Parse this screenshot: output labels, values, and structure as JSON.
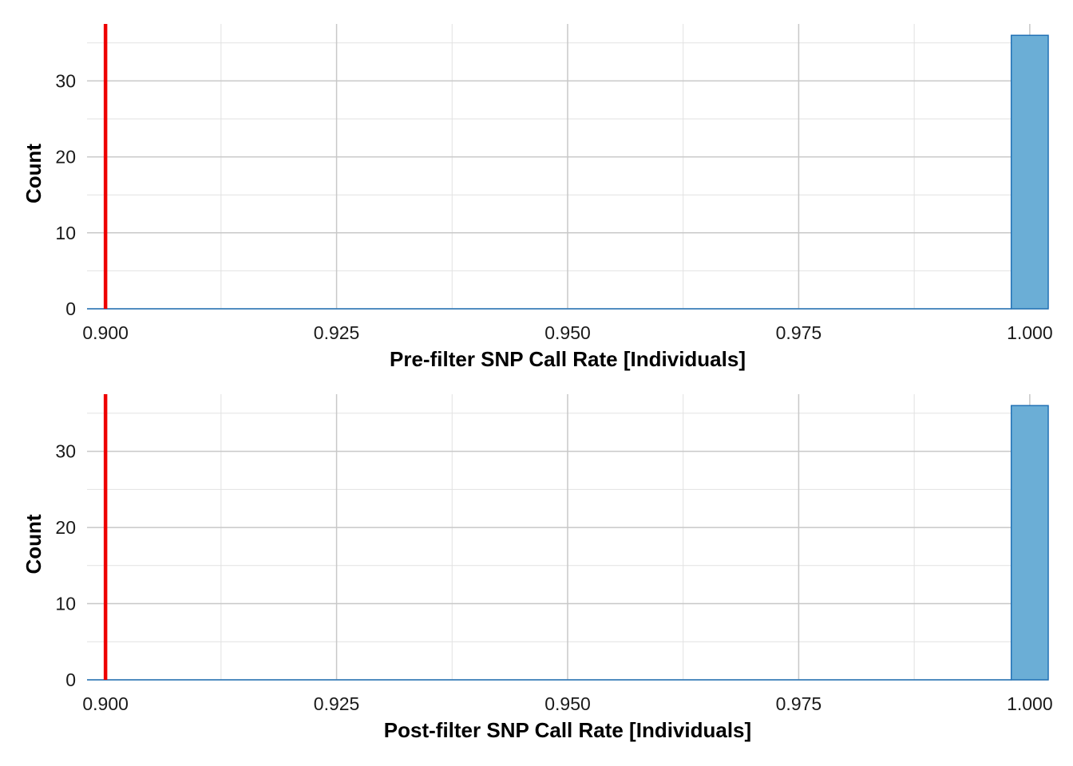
{
  "chart_data": [
    {
      "type": "bar",
      "xlabel": "Pre-filter SNP Call Rate [Individuals]",
      "ylabel": "Count",
      "xlim": [
        0.898,
        1.002
      ],
      "ylim": [
        0,
        37.5
      ],
      "x_ticks": [
        "0.900",
        "0.925",
        "0.950",
        "0.975",
        "1.000"
      ],
      "y_ticks": [
        "0",
        "10",
        "20",
        "30"
      ],
      "bins": [
        {
          "x_start": 0.898,
          "x_end": 0.998,
          "count": 0
        },
        {
          "x_start": 0.998,
          "x_end": 1.002,
          "count": 36
        }
      ],
      "threshold": 0.9,
      "grid": true
    },
    {
      "type": "bar",
      "xlabel": "Post-filter SNP Call Rate [Individuals]",
      "ylabel": "Count",
      "xlim": [
        0.898,
        1.002
      ],
      "ylim": [
        0,
        37.5
      ],
      "x_ticks": [
        "0.900",
        "0.925",
        "0.950",
        "0.975",
        "1.000"
      ],
      "y_ticks": [
        "0",
        "10",
        "20",
        "30"
      ],
      "bins": [
        {
          "x_start": 0.898,
          "x_end": 0.998,
          "count": 0
        },
        {
          "x_start": 0.998,
          "x_end": 1.002,
          "count": 36
        }
      ],
      "threshold": 0.9,
      "grid": true
    }
  ],
  "colors": {
    "bar_fill": "#6baed6",
    "bar_stroke": "#2171b5",
    "threshold": "#ee0000",
    "grid_major": "#c8c8c8",
    "grid_minor": "#e2e2e2"
  }
}
